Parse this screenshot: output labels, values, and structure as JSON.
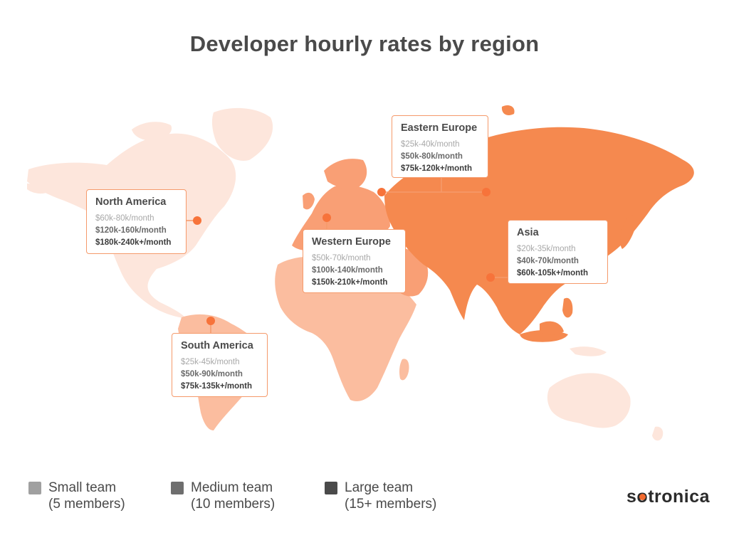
{
  "title": "Developer hourly rates by region",
  "colors": {
    "accent": "#f26a2e",
    "marker": "#f7733a",
    "card_border": "#f59a6b",
    "land_light": "#fde6dc",
    "land_medium": "#fbbd9f",
    "land_strong": "#f99f75",
    "land_darkest": "#f5894f",
    "legend_small": "#a0a0a0",
    "legend_medium": "#6e6e6e",
    "legend_large": "#4a4a4a"
  },
  "regions": [
    {
      "name": "North America",
      "rates": {
        "small": "$60k-80k/month",
        "medium": "$120k-160k/month",
        "large": "$180k-240k+/month"
      }
    },
    {
      "name": "Eastern Europe",
      "rates": {
        "small": "$25k-40k/month",
        "medium": "$50k-80k/month",
        "large": "$75k-120k+/month"
      }
    },
    {
      "name": "Western Europe",
      "rates": {
        "small": "$50k-70k/month",
        "medium": "$100k-140k/month",
        "large": "$150k-210k+/month"
      }
    },
    {
      "name": "Asia",
      "rates": {
        "small": "$20k-35k/month",
        "medium": "$40k-70k/month",
        "large": "$60k-105k+/month"
      }
    },
    {
      "name": "South America",
      "rates": {
        "small": "$25k-45k/month",
        "medium": "$50k-90k/month",
        "large": "$75k-135k+/month"
      }
    }
  ],
  "legend": [
    {
      "label": "Small team",
      "sub": "(5 members)"
    },
    {
      "label": "Medium team",
      "sub": "(10 members)"
    },
    {
      "label": "Large team",
      "sub": "(15+ members)"
    }
  ],
  "logo": {
    "before": "s",
    "o": "o",
    "after": "tronica"
  }
}
